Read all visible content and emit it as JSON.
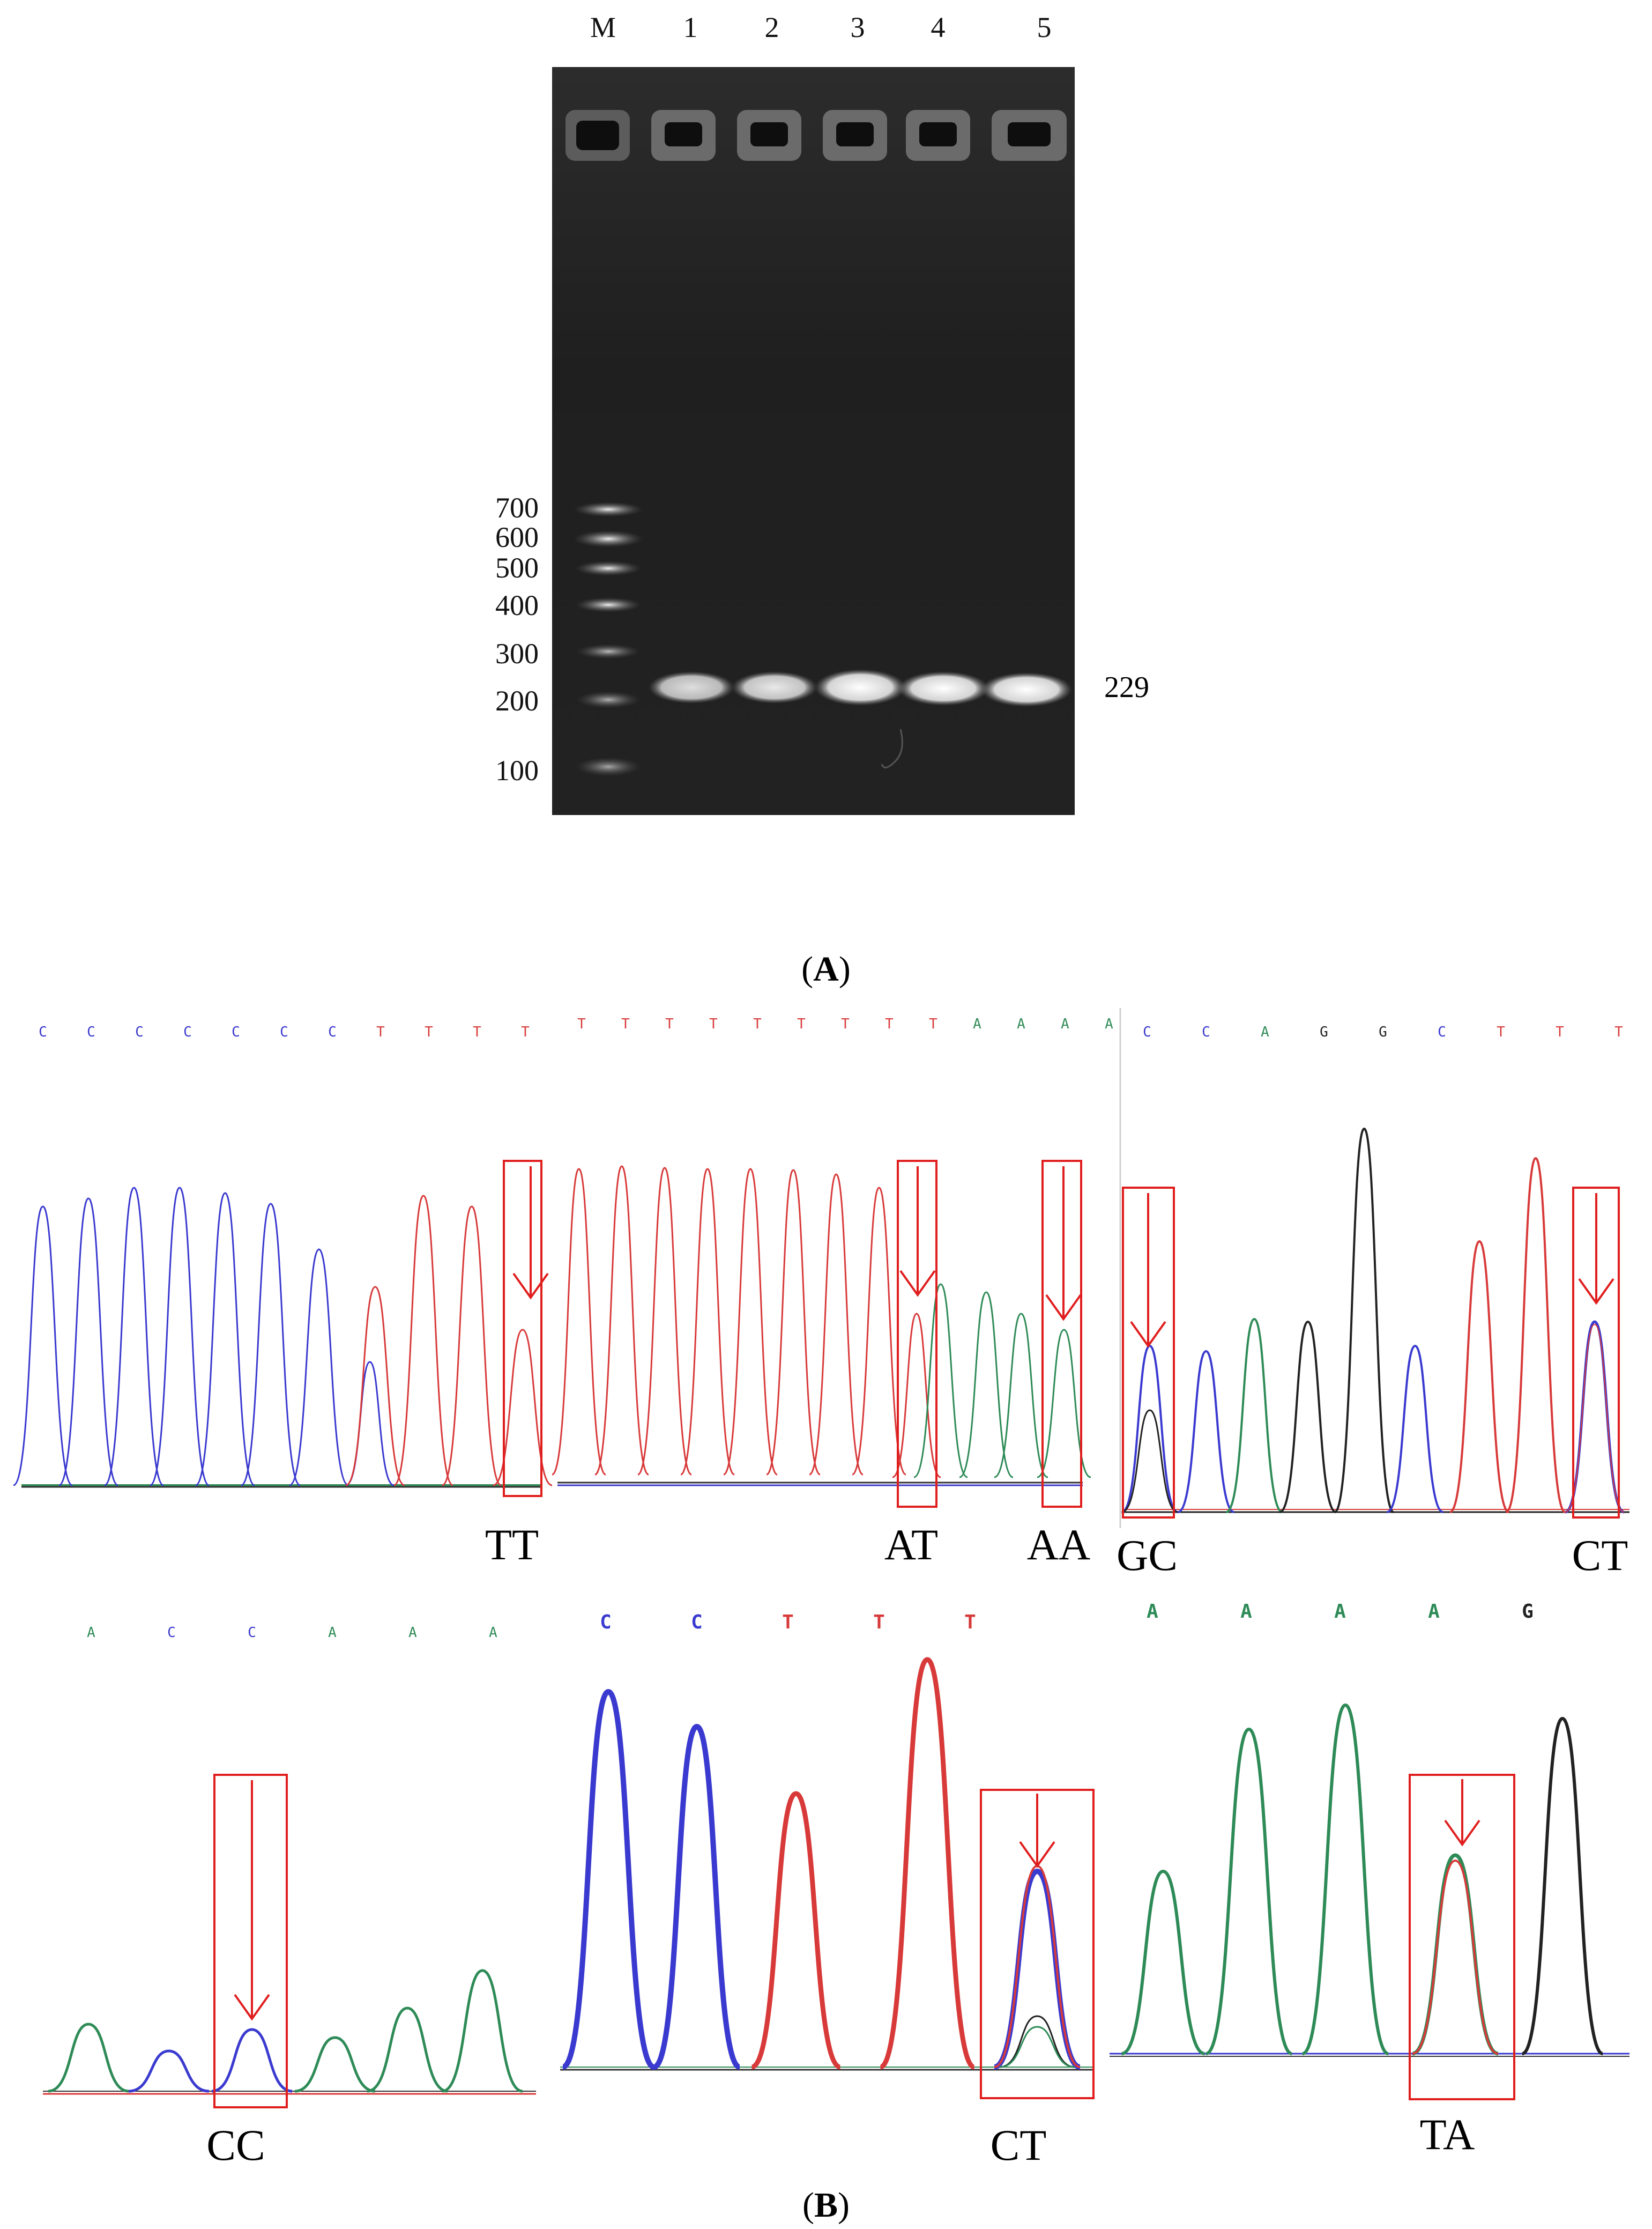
{
  "figure": {
    "panel_a": {
      "caption_letter": "A",
      "lane_labels": [
        "M",
        "1",
        "2",
        "3",
        "4",
        "5"
      ],
      "marker_sizes": [
        "700",
        "600",
        "500",
        "400",
        "300",
        "200",
        "100"
      ],
      "band_size_label": "229"
    },
    "panel_b": {
      "caption_letter": "B",
      "chromatograms": [
        {
          "id": "p1",
          "bases": [
            "C",
            "C",
            "C",
            "C",
            "C",
            "C",
            "C",
            "T",
            "T",
            "T",
            "T"
          ],
          "genotypes": [
            "TT"
          ]
        },
        {
          "id": "p2",
          "bases": [
            "T",
            "T",
            "T",
            "T",
            "T",
            "T",
            "T",
            "T",
            "T",
            "A",
            "A",
            "A",
            "A"
          ],
          "genotypes": [
            "AT",
            "AA"
          ]
        },
        {
          "id": "p3",
          "bases": [
            "C",
            "C",
            "A",
            "G",
            "G",
            "C",
            "T",
            "T",
            "T"
          ],
          "genotypes": [
            "GC",
            "CT"
          ]
        },
        {
          "id": "p4",
          "bases": [
            "A",
            "C",
            "C",
            "A",
            "A",
            "A"
          ],
          "genotypes": [
            "CC"
          ]
        },
        {
          "id": "p5",
          "bases": [
            "C",
            "C",
            "T",
            "T",
            "T"
          ],
          "genotypes": [
            "CT"
          ]
        },
        {
          "id": "p6",
          "bases": [
            "A",
            "A",
            "A",
            "A",
            "G"
          ],
          "genotypes": [
            "TA"
          ]
        }
      ]
    },
    "colors": {
      "base_A": "#2e8b57",
      "base_C": "#3a3ad0",
      "base_G": "#222222",
      "base_T": "#d83a3a",
      "annotation": "#e01e1e"
    }
  }
}
